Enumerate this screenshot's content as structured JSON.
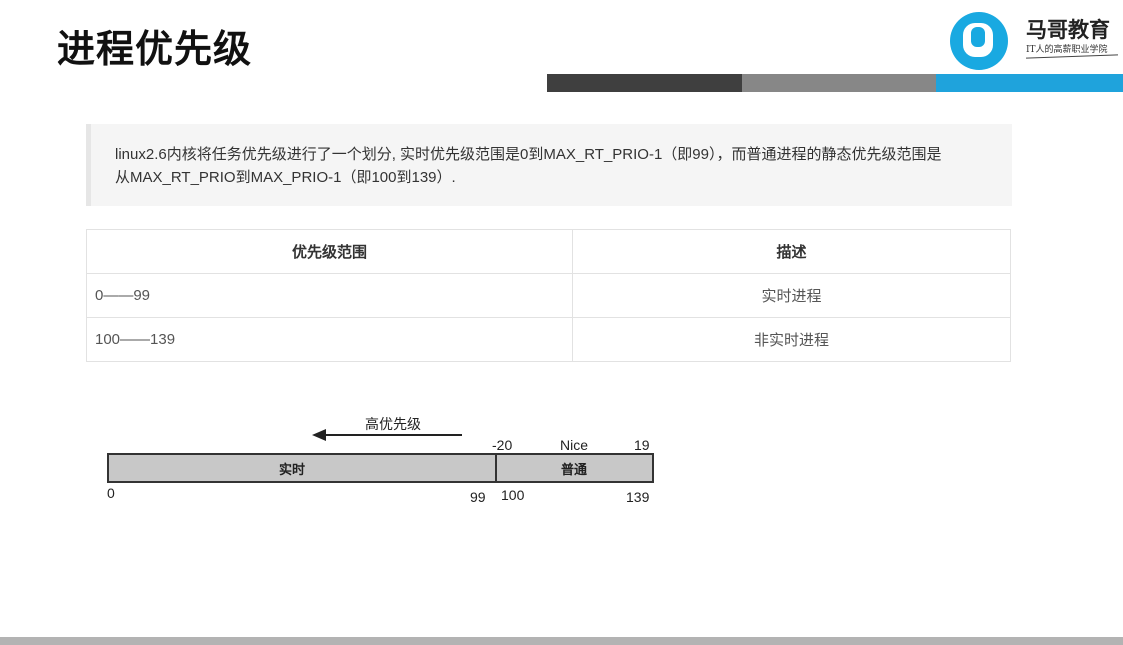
{
  "title": "进程优先级",
  "logo": {
    "name": "马哥教育",
    "slogan": "IT人的高薪职业学院"
  },
  "quote_lines": [
    "linux2.6内核将任务优先级进行了一个划分, 实时优先级范围是0到MAX_RT_PRIO-1（即99），而普通进程的静态优先级范围是",
    "从MAX_RT_PRIO到MAX_PRIO-1（即100到139）."
  ],
  "table": {
    "headers": [
      "优先级范围",
      "描述"
    ],
    "rows": [
      [
        "0——99",
        "实时进程"
      ],
      [
        "100——139",
        "非实时进程"
      ]
    ]
  },
  "diagram": {
    "arrow_label": "高优先级",
    "nice_label": "Nice",
    "nice_min": "-20",
    "nice_max": "19",
    "segment_realtime": "实时",
    "segment_normal": "普通",
    "tick_0": "0",
    "tick_99": "99",
    "tick_100": "100",
    "tick_139": "139"
  },
  "colors": {
    "bar_dark": "#3f3f3f",
    "bar_mid": "#878787",
    "bar_blue": "#1fa3dc",
    "logo_blue": "#19a9e1"
  }
}
